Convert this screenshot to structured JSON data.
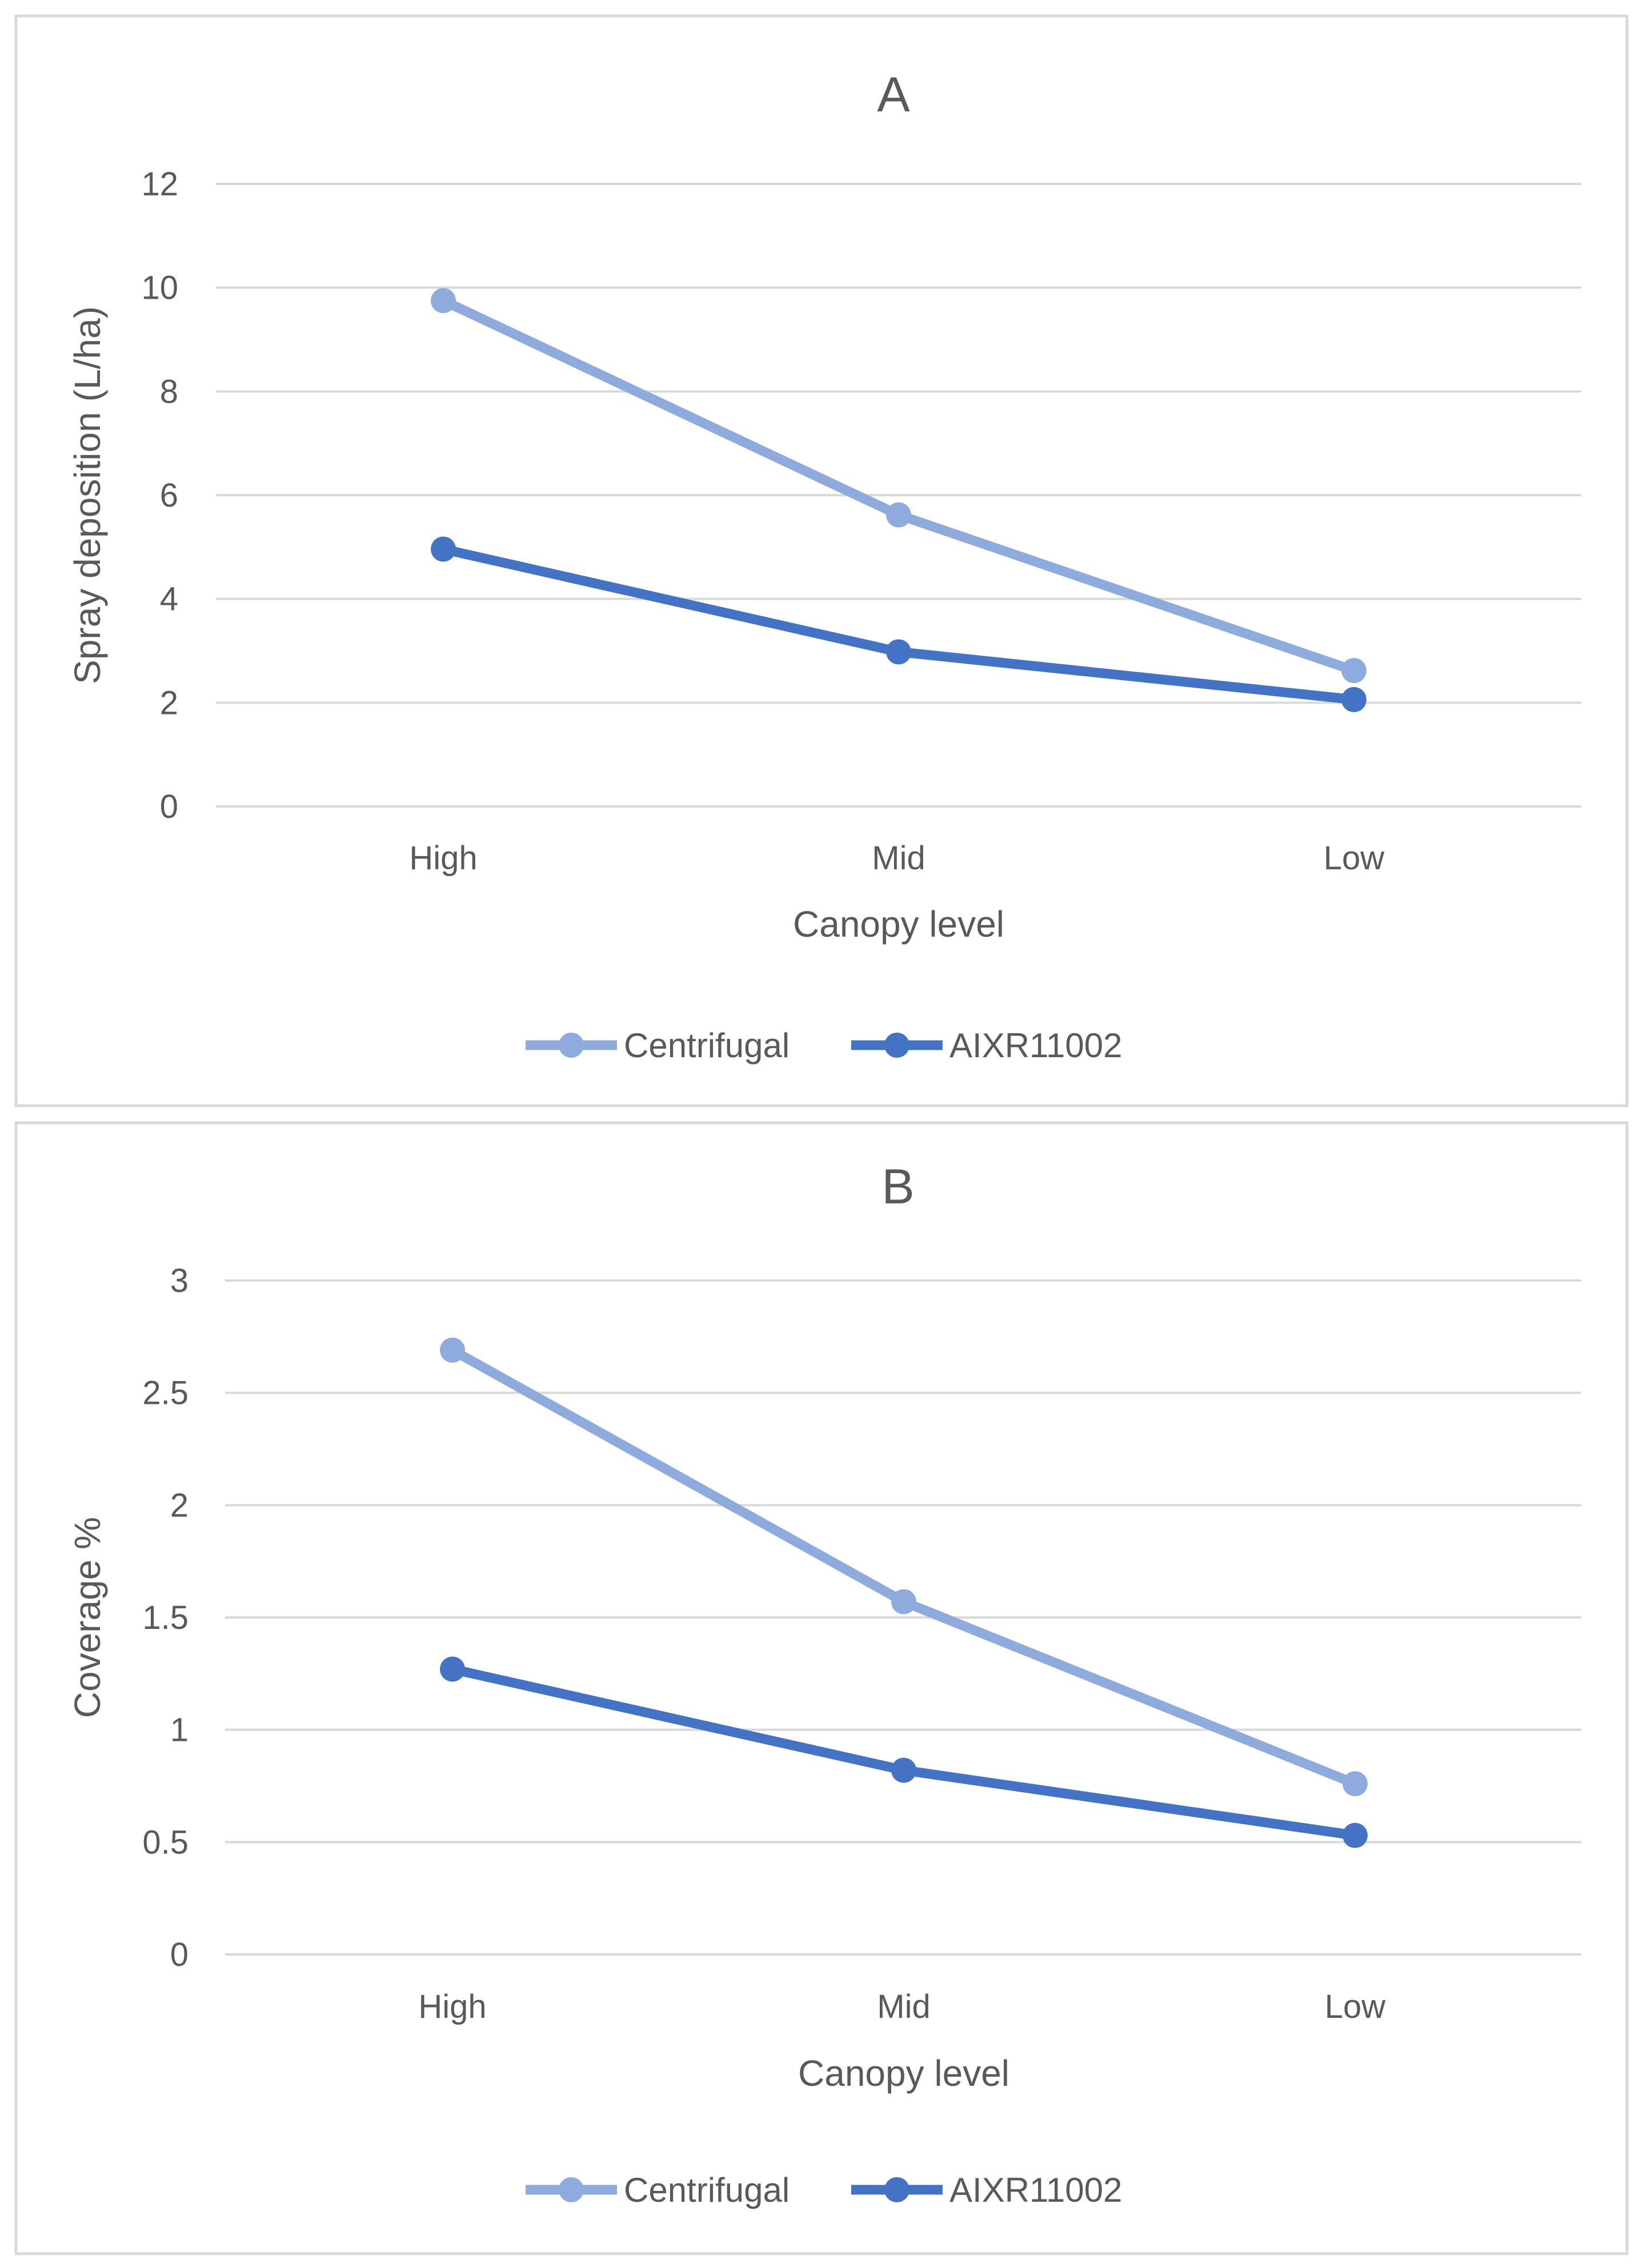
{
  "chart_data": [
    {
      "type": "line",
      "title": "A",
      "categories": [
        "High",
        "Mid",
        "Low"
      ],
      "xlabel": "Canopy level",
      "ylabel": "Spray deposition (L/ha)",
      "ylim": [
        0,
        12
      ],
      "yticks": [
        "0",
        "2",
        "4",
        "6",
        "8",
        "10",
        "12"
      ],
      "yticks_values": [
        0,
        2,
        4,
        6,
        8,
        10,
        12
      ],
      "grid": true,
      "legend_position": "bottom",
      "series": [
        {
          "name": "Centrifugal",
          "values": [
            9.75,
            5.62,
            2.62
          ],
          "color": "#8faadc"
        },
        {
          "name": "AIXR11002",
          "values": [
            4.96,
            2.98,
            2.06
          ],
          "color": "#4472c4"
        }
      ]
    },
    {
      "type": "line",
      "title": "B",
      "categories": [
        "High",
        "Mid",
        "Low"
      ],
      "xlabel": "Canopy level",
      "ylabel": "Coverage %",
      "ylim": [
        0,
        3
      ],
      "yticks": [
        "0",
        "0.5",
        "1",
        "1.5",
        "2",
        "2.5",
        "3"
      ],
      "yticks_values": [
        0,
        0.5,
        1,
        1.5,
        2,
        2.5,
        3
      ],
      "grid": true,
      "legend_position": "bottom",
      "series": [
        {
          "name": "Centrifugal",
          "values": [
            2.69,
            1.57,
            0.76
          ],
          "color": "#8faadc"
        },
        {
          "name": "AIXR11002",
          "values": [
            1.27,
            0.82,
            0.53
          ],
          "color": "#4472c4"
        }
      ]
    }
  ]
}
